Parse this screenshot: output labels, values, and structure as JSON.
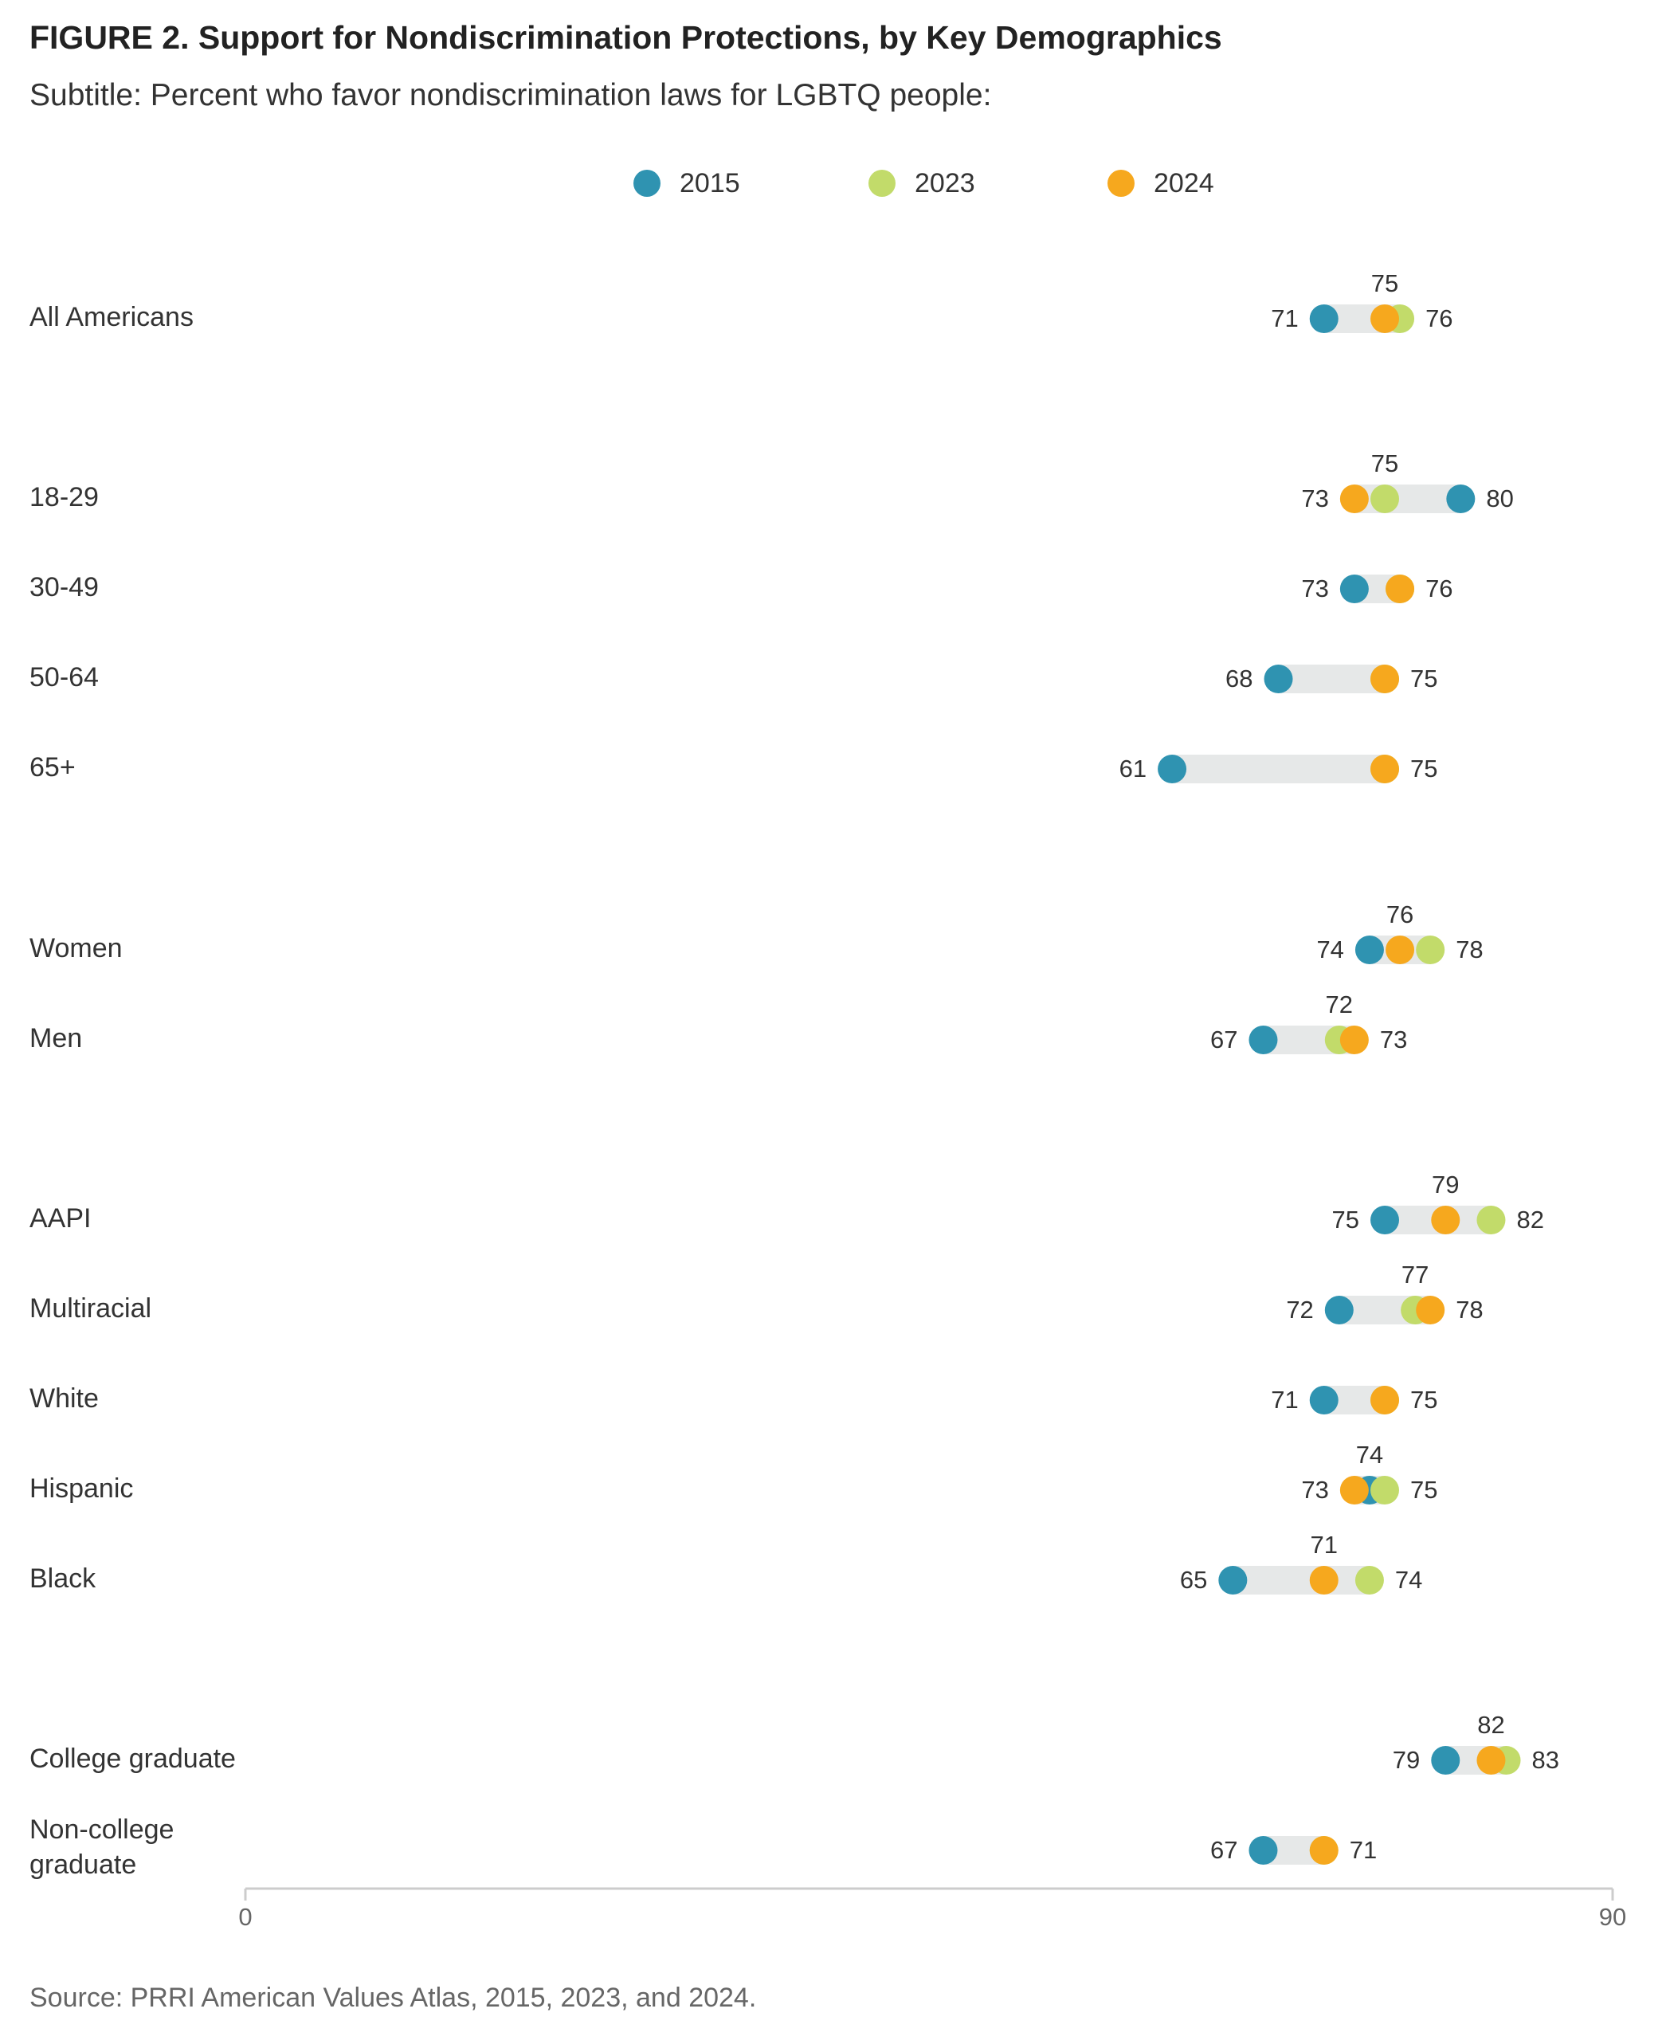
{
  "title": "FIGURE 2.  Support for Nondiscrimination Protections, by Key Demographics",
  "subtitle": "Subtitle: Percent who favor nondiscrimination laws for LGBTQ people:",
  "source": "Source: PRRI American Values Atlas, 2015, 2023, and 2024.",
  "legend": [
    {
      "label": "2015",
      "color": "#2f93b1"
    },
    {
      "label": "2023",
      "color": "#c2db6a"
    },
    {
      "label": "2024",
      "color": "#f6a81e"
    }
  ],
  "chart_data": {
    "type": "scatter",
    "subtype": "dot-plot",
    "title": "FIGURE 2.  Support for Nondiscrimination Protections, by Key Demographics",
    "subtitle": "Subtitle: Percent who favor nondiscrimination laws for LGBTQ people:",
    "xlim": [
      0,
      90
    ],
    "x_ticks": [
      "0",
      "90"
    ],
    "grid": false,
    "legend_position": "top-center",
    "series": [
      {
        "name": "2015",
        "color": "#2f93b1"
      },
      {
        "name": "2023",
        "color": "#c2db6a"
      },
      {
        "name": "2024",
        "color": "#f6a81e"
      }
    ],
    "groups": [
      {
        "rows": [
          {
            "label": "All Americans",
            "values": {
              "2015": 71,
              "2023": 76,
              "2024": 75
            }
          }
        ]
      },
      {
        "rows": [
          {
            "label": "18-29",
            "values": {
              "2015": 80,
              "2023": 75,
              "2024": 73
            }
          },
          {
            "label": "30-49",
            "values": {
              "2015": 73,
              "2023": 76,
              "2024": 76
            }
          },
          {
            "label": "50-64",
            "values": {
              "2015": 68,
              "2023": 75,
              "2024": 75
            }
          },
          {
            "label": "65+",
            "values": {
              "2015": 61,
              "2023": 75,
              "2024": 75
            }
          }
        ]
      },
      {
        "rows": [
          {
            "label": "Women",
            "values": {
              "2015": 74,
              "2023": 78,
              "2024": 76
            }
          },
          {
            "label": "Men",
            "values": {
              "2015": 67,
              "2023": 72,
              "2024": 73
            }
          }
        ]
      },
      {
        "rows": [
          {
            "label": "AAPI",
            "values": {
              "2015": 75,
              "2023": 82,
              "2024": 79
            }
          },
          {
            "label": "Multiracial",
            "values": {
              "2015": 72,
              "2023": 77,
              "2024": 78
            }
          },
          {
            "label": "White",
            "values": {
              "2015": 71,
              "2023": 75,
              "2024": 75
            }
          },
          {
            "label": "Hispanic",
            "values": {
              "2015": 74,
              "2023": 75,
              "2024": 73
            }
          },
          {
            "label": "Black",
            "values": {
              "2015": 65,
              "2023": 74,
              "2024": 71
            }
          }
        ]
      },
      {
        "rows": [
          {
            "label": "College graduate",
            "values": {
              "2015": 79,
              "2023": 83,
              "2024": 82
            }
          },
          {
            "label": "Non-college graduate",
            "values": {
              "2015": 67,
              "2023": 71,
              "2024": 71
            }
          }
        ]
      }
    ]
  }
}
